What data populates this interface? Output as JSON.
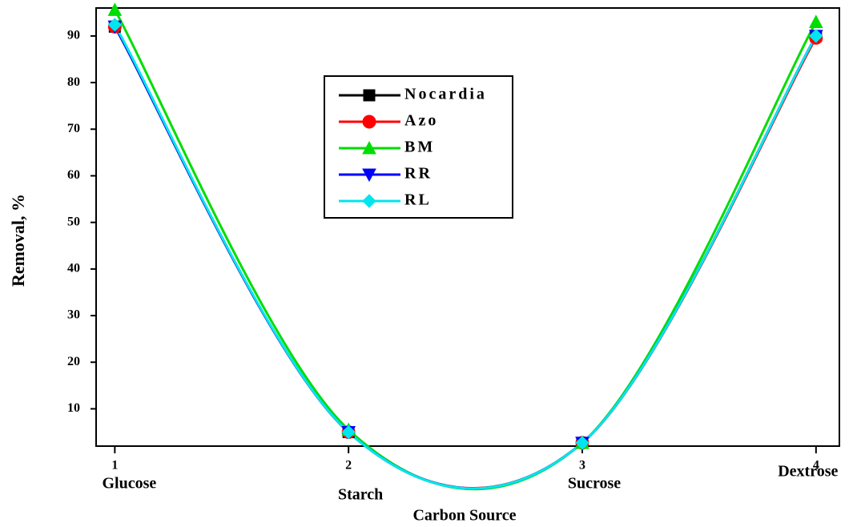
{
  "chart_data": {
    "type": "line",
    "xlabel": "Carbon Source",
    "ylabel": "Removal, %",
    "x": [
      1,
      2,
      3,
      4
    ],
    "categories": [
      "Glucose",
      "Starch",
      "Sucrose",
      "Dextrose"
    ],
    "series": [
      {
        "name": "Nocardia",
        "color": "#000000",
        "marker": "square",
        "values": [
          92,
          5,
          2.7,
          90
        ]
      },
      {
        "name": "Azo",
        "color": "#ff0000",
        "marker": "circle",
        "values": [
          92,
          5,
          2.7,
          89.6
        ]
      },
      {
        "name": "BM",
        "color": "#00dd00",
        "marker": "triangle-up",
        "values": [
          95.6,
          5.5,
          2.7,
          93
        ]
      },
      {
        "name": "RR",
        "color": "#0000ff",
        "marker": "triangle-down",
        "values": [
          92,
          5,
          2.7,
          90
        ]
      },
      {
        "name": "RL",
        "color": "#00e5ee",
        "marker": "diamond",
        "values": [
          92.4,
          5,
          2.7,
          90
        ]
      }
    ],
    "xlim": [
      0.92,
      4.1
    ],
    "xticks": [
      1,
      2,
      3,
      4
    ],
    "ylim": [
      2,
      96
    ],
    "yticks": [
      10,
      20,
      30,
      40,
      50,
      60,
      70,
      80,
      90
    ],
    "legend": "upper center"
  }
}
